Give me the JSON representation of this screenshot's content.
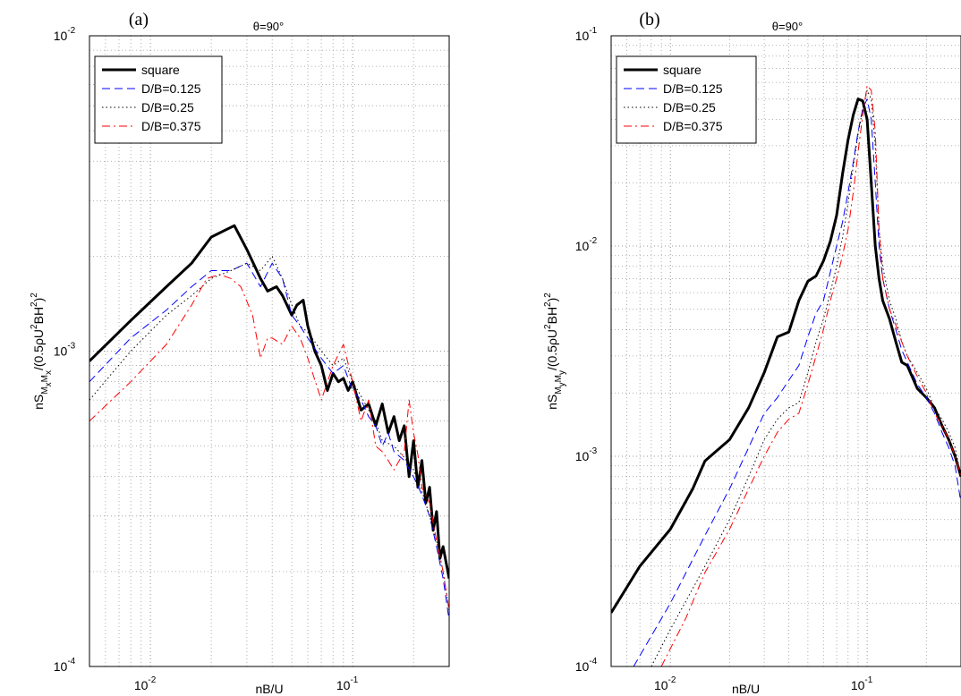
{
  "chart_data": [
    {
      "panel_label": "(a)",
      "type": "line",
      "title": "θ=90°",
      "xlabel": "nB/U",
      "ylabel_parts": [
        "nS",
        "M",
        "x",
        "M",
        "x",
        "/(0.5ρU",
        "2",
        "BH",
        "2",
        ")",
        "2"
      ],
      "xscale": "log",
      "yscale": "log",
      "xlim": [
        0.005,
        0.3
      ],
      "ylim": [
        0.0001,
        0.01
      ],
      "grid": true,
      "legend": "top-left",
      "xticks": [
        {
          "value": 0.01,
          "base": "10",
          "exp": "-2"
        },
        {
          "value": 0.1,
          "base": "10",
          "exp": "-1"
        }
      ],
      "yticks": [
        {
          "value": 0.0001,
          "base": "10",
          "exp": "-4"
        },
        {
          "value": 0.001,
          "base": "10",
          "exp": "-3"
        },
        {
          "value": 0.01,
          "base": "10",
          "exp": "-2"
        }
      ],
      "series": [
        {
          "name": "square",
          "color": "#000000",
          "style": "solid",
          "width": 3,
          "x": [
            0.005,
            0.008,
            0.012,
            0.016,
            0.02,
            0.026,
            0.03,
            0.035,
            0.038,
            0.042,
            0.045,
            0.05,
            0.053,
            0.057,
            0.06,
            0.065,
            0.07,
            0.075,
            0.08,
            0.085,
            0.09,
            0.095,
            0.1,
            0.11,
            0.12,
            0.13,
            0.14,
            0.15,
            0.16,
            0.17,
            0.18,
            0.19,
            0.2,
            0.21,
            0.22,
            0.23,
            0.24,
            0.25,
            0.26,
            0.27,
            0.28,
            0.3
          ],
          "y": [
            0.00093,
            0.00125,
            0.0016,
            0.0019,
            0.0023,
            0.0025,
            0.0021,
            0.0017,
            0.00155,
            0.0016,
            0.0015,
            0.0013,
            0.0014,
            0.00145,
            0.0012,
            0.001,
            0.0009,
            0.00075,
            0.00085,
            0.0008,
            0.00082,
            0.00075,
            0.0008,
            0.00065,
            0.00068,
            0.00058,
            0.00068,
            0.00055,
            0.00062,
            0.00052,
            0.00058,
            0.0004,
            0.00052,
            0.00037,
            0.00045,
            0.00033,
            0.00037,
            0.00027,
            0.00031,
            0.00022,
            0.00024,
            0.00019
          ]
        },
        {
          "name": "D/B=0.125",
          "color": "#0000ff",
          "style": "dashed",
          "width": 1,
          "x": [
            0.005,
            0.008,
            0.012,
            0.016,
            0.02,
            0.025,
            0.03,
            0.035,
            0.04,
            0.045,
            0.05,
            0.055,
            0.06,
            0.07,
            0.08,
            0.09,
            0.1,
            0.11,
            0.12,
            0.13,
            0.14,
            0.15,
            0.16,
            0.18,
            0.2,
            0.22,
            0.24,
            0.26,
            0.28,
            0.3
          ],
          "y": [
            0.0008,
            0.0011,
            0.00135,
            0.0016,
            0.0018,
            0.0018,
            0.0019,
            0.0016,
            0.0019,
            0.0017,
            0.0013,
            0.0012,
            0.0011,
            0.00095,
            0.00085,
            0.0009,
            0.00075,
            0.0007,
            0.00062,
            0.00058,
            0.0005,
            0.00055,
            0.00048,
            0.00045,
            0.0004,
            0.00035,
            0.0003,
            0.00024,
            0.00019,
            0.00014
          ]
        },
        {
          "name": "D/B=0.25",
          "color": "#000000",
          "style": "dotted",
          "width": 1,
          "x": [
            0.005,
            0.008,
            0.012,
            0.016,
            0.02,
            0.025,
            0.03,
            0.035,
            0.04,
            0.045,
            0.05,
            0.055,
            0.06,
            0.07,
            0.08,
            0.09,
            0.1,
            0.11,
            0.12,
            0.13,
            0.14,
            0.16,
            0.18,
            0.2,
            0.22,
            0.24,
            0.26,
            0.28,
            0.3
          ],
          "y": [
            0.0007,
            0.001,
            0.0013,
            0.0015,
            0.0017,
            0.0018,
            0.0019,
            0.0018,
            0.002,
            0.0017,
            0.0014,
            0.0012,
            0.00115,
            0.001,
            0.0009,
            0.00095,
            0.0008,
            0.00072,
            0.00065,
            0.0006,
            0.00052,
            0.0005,
            0.00046,
            0.00042,
            0.00036,
            0.0003,
            0.00025,
            0.0002,
            0.00015
          ]
        },
        {
          "name": "D/B=0.375",
          "color": "#ff0000",
          "style": "dashdot",
          "width": 1,
          "x": [
            0.005,
            0.008,
            0.012,
            0.016,
            0.019,
            0.022,
            0.025,
            0.028,
            0.032,
            0.035,
            0.038,
            0.04,
            0.045,
            0.05,
            0.055,
            0.06,
            0.07,
            0.08,
            0.09,
            0.1,
            0.11,
            0.12,
            0.13,
            0.14,
            0.15,
            0.16,
            0.18,
            0.19,
            0.2,
            0.21,
            0.22,
            0.24,
            0.26,
            0.28,
            0.3
          ],
          "y": [
            0.0006,
            0.0008,
            0.00105,
            0.0014,
            0.0017,
            0.00175,
            0.0017,
            0.0016,
            0.0013,
            0.00095,
            0.0011,
            0.0011,
            0.00105,
            0.0012,
            0.0011,
            0.00095,
            0.0007,
            0.0009,
            0.00105,
            0.0008,
            0.0006,
            0.0007,
            0.0005,
            0.00048,
            0.00045,
            0.00042,
            0.00048,
            0.0007,
            0.00055,
            0.00047,
            0.00037,
            0.00033,
            0.00025,
            0.0002,
            0.00015
          ]
        }
      ]
    },
    {
      "panel_label": "(b)",
      "type": "line",
      "title": "θ=90°",
      "xlabel": "nB/U",
      "ylabel_parts": [
        "nS",
        "M",
        "y",
        "M",
        "y",
        "/(0.5ρU",
        "2",
        "BH",
        "2",
        ")",
        "2"
      ],
      "xscale": "log",
      "yscale": "log",
      "xlim": [
        0.005,
        0.3
      ],
      "ylim": [
        0.0001,
        0.1
      ],
      "grid": true,
      "legend": "top-left",
      "xticks": [
        {
          "value": 0.01,
          "base": "10",
          "exp": "-2"
        },
        {
          "value": 0.1,
          "base": "10",
          "exp": "-1"
        }
      ],
      "yticks": [
        {
          "value": 0.0001,
          "base": "10",
          "exp": "-4"
        },
        {
          "value": 0.001,
          "base": "10",
          "exp": "-3"
        },
        {
          "value": 0.01,
          "base": "10",
          "exp": "-2"
        },
        {
          "value": 0.1,
          "base": "10",
          "exp": "-1"
        }
      ],
      "series": [
        {
          "name": "square",
          "color": "#000000",
          "style": "solid",
          "width": 3,
          "x": [
            0.005,
            0.007,
            0.01,
            0.013,
            0.015,
            0.02,
            0.025,
            0.03,
            0.035,
            0.04,
            0.045,
            0.05,
            0.055,
            0.06,
            0.065,
            0.07,
            0.075,
            0.08,
            0.085,
            0.09,
            0.095,
            0.1,
            0.105,
            0.11,
            0.115,
            0.12,
            0.13,
            0.14,
            0.15,
            0.16,
            0.18,
            0.2,
            0.22,
            0.24,
            0.26,
            0.28,
            0.3
          ],
          "y": [
            0.00018,
            0.0003,
            0.00045,
            0.0007,
            0.00095,
            0.0012,
            0.0017,
            0.0025,
            0.0037,
            0.0039,
            0.0055,
            0.0068,
            0.0072,
            0.0085,
            0.0105,
            0.014,
            0.022,
            0.032,
            0.042,
            0.05,
            0.049,
            0.04,
            0.02,
            0.01,
            0.007,
            0.0055,
            0.0045,
            0.0035,
            0.0028,
            0.0027,
            0.0021,
            0.0019,
            0.0017,
            0.0014,
            0.0012,
            0.001,
            0.0008
          ]
        },
        {
          "name": "D/B=0.125",
          "color": "#0000ff",
          "style": "dashed",
          "width": 1,
          "x": [
            0.0065,
            0.01,
            0.015,
            0.02,
            0.025,
            0.03,
            0.035,
            0.04,
            0.045,
            0.05,
            0.055,
            0.06,
            0.065,
            0.07,
            0.075,
            0.08,
            0.085,
            0.09,
            0.095,
            0.1,
            0.105,
            0.11,
            0.115,
            0.12,
            0.13,
            0.14,
            0.15,
            0.16,
            0.18,
            0.2,
            0.22,
            0.24,
            0.26,
            0.28,
            0.3
          ],
          "y": [
            0.0001,
            0.0002,
            0.00042,
            0.0007,
            0.0011,
            0.0016,
            0.0019,
            0.0023,
            0.0027,
            0.0037,
            0.0048,
            0.0055,
            0.0075,
            0.01,
            0.013,
            0.018,
            0.025,
            0.035,
            0.045,
            0.05,
            0.04,
            0.02,
            0.01,
            0.007,
            0.005,
            0.004,
            0.0032,
            0.0028,
            0.0022,
            0.0019,
            0.0016,
            0.0013,
            0.0011,
            0.0009,
            0.0006
          ]
        },
        {
          "name": "D/B=0.25",
          "color": "#000000",
          "style": "dotted",
          "width": 1,
          "x": [
            0.008,
            0.01,
            0.015,
            0.02,
            0.025,
            0.03,
            0.035,
            0.04,
            0.045,
            0.05,
            0.055,
            0.06,
            0.065,
            0.07,
            0.075,
            0.08,
            0.085,
            0.09,
            0.095,
            0.1,
            0.105,
            0.11,
            0.115,
            0.12,
            0.13,
            0.14,
            0.15,
            0.16,
            0.18,
            0.2,
            0.22,
            0.24,
            0.26,
            0.28,
            0.3
          ],
          "y": [
            0.0001,
            0.00015,
            0.0003,
            0.0005,
            0.0008,
            0.0012,
            0.0015,
            0.0017,
            0.0018,
            0.0025,
            0.0035,
            0.0045,
            0.006,
            0.008,
            0.011,
            0.016,
            0.024,
            0.034,
            0.045,
            0.055,
            0.05,
            0.03,
            0.012,
            0.008,
            0.0055,
            0.0045,
            0.0035,
            0.003,
            0.0025,
            0.0021,
            0.0017,
            0.0015,
            0.0013,
            0.0011,
            0.0008
          ]
        },
        {
          "name": "D/B=0.375",
          "color": "#ff0000",
          "style": "dashdot",
          "width": 1,
          "x": [
            0.009,
            0.012,
            0.015,
            0.02,
            0.025,
            0.03,
            0.035,
            0.04,
            0.045,
            0.05,
            0.055,
            0.06,
            0.065,
            0.07,
            0.075,
            0.08,
            0.085,
            0.09,
            0.095,
            0.1,
            0.105,
            0.11,
            0.115,
            0.12,
            0.13,
            0.14,
            0.15,
            0.16,
            0.18,
            0.2,
            0.22,
            0.24,
            0.26,
            0.28,
            0.3
          ],
          "y": [
            0.0001,
            0.00017,
            0.00028,
            0.00045,
            0.0007,
            0.001,
            0.0013,
            0.0015,
            0.0016,
            0.0022,
            0.003,
            0.004,
            0.0055,
            0.007,
            0.009,
            0.012,
            0.018,
            0.028,
            0.042,
            0.058,
            0.055,
            0.035,
            0.012,
            0.007,
            0.005,
            0.0042,
            0.0035,
            0.003,
            0.0024,
            0.002,
            0.0016,
            0.0014,
            0.0012,
            0.001,
            0.0008
          ]
        }
      ]
    }
  ]
}
